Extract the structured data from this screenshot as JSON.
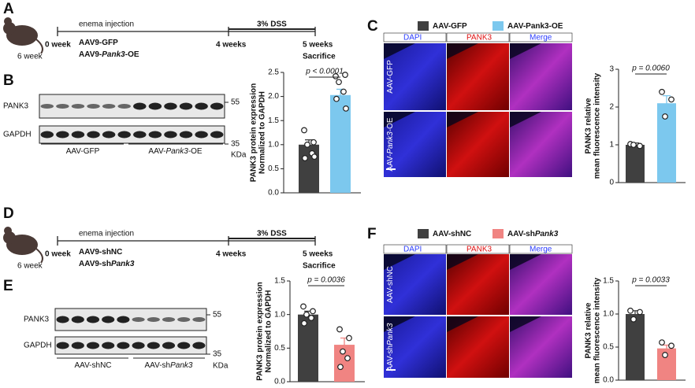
{
  "panel_labels": [
    "A",
    "B",
    "C",
    "D",
    "E",
    "F"
  ],
  "timelines": [
    {
      "age": "6 week",
      "start": "0 week",
      "mid": "4 weeks",
      "end": "5 weeks",
      "end_note": "Sacrifice",
      "injection": "enema injection",
      "treatment": "3% DSS",
      "groups": [
        [
          {
            "text": "AAV9-GFP"
          }
        ],
        [
          {
            "text": "AAV9-"
          },
          {
            "text": "Pank3",
            "italic": true
          },
          {
            "text": "-OE"
          }
        ]
      ]
    },
    {
      "age": "6 week",
      "start": "0 week",
      "mid": "4 weeks",
      "end": "5 weeks",
      "end_note": "Sacrifice",
      "injection": "enema injection",
      "treatment": "3% DSS",
      "groups": [
        [
          {
            "text": "AAV9-shNC"
          }
        ],
        [
          {
            "text": "AAV9-sh"
          },
          {
            "text": "Pank3",
            "italic": true
          }
        ]
      ]
    }
  ],
  "blots": [
    {
      "bands": [
        "PANK3",
        "GAPDH"
      ],
      "markers": [
        "55",
        "35"
      ],
      "unit": "KDa",
      "groups": [
        [
          {
            "text": "AAV-GFP"
          }
        ],
        [
          {
            "text": "AAV-"
          },
          {
            "text": "Pank3",
            "italic": true
          },
          {
            "text": "-OE"
          }
        ]
      ]
    },
    {
      "bands": [
        "PANK3",
        "GAPDH"
      ],
      "markers": [
        "55",
        "35"
      ],
      "unit": "KDa",
      "groups": [
        [
          {
            "text": "AAV-shNC"
          }
        ],
        [
          {
            "text": "AAV-sh"
          },
          {
            "text": "Pank3",
            "italic": true
          }
        ]
      ]
    }
  ],
  "images": [
    {
      "legend": [
        {
          "name": [
            {
              "text": "AAV-GFP"
            }
          ],
          "color": "#404040"
        },
        {
          "name": [
            {
              "text": "AAV-Pank3-OE"
            }
          ],
          "color": "#7cc8ee"
        }
      ],
      "channels": [
        "DAPI",
        "PANK3",
        "Merge"
      ],
      "rows": [
        [
          {
            "text": "AAV-GFP"
          }
        ],
        [
          {
            "text": "AAV-"
          },
          {
            "text": "Pank3",
            "italic": true
          },
          {
            "text": "-OE"
          }
        ]
      ]
    },
    {
      "legend": [
        {
          "name": [
            {
              "text": "AAV-shNC"
            }
          ],
          "color": "#404040"
        },
        {
          "name": [
            {
              "text": "AAV-sh"
            },
            {
              "text": "Pank3",
              "italic": true
            }
          ],
          "color": "#f08482"
        }
      ],
      "channels": [
        "DAPI",
        "PANK3",
        "Merge"
      ],
      "rows": [
        [
          {
            "text": "AAV-shNC"
          }
        ],
        [
          {
            "text": "AAV-sh"
          },
          {
            "text": "Pank3",
            "italic": true
          }
        ]
      ]
    }
  ],
  "chart_data": [
    {
      "type": "bar",
      "ylabel": [
        "PANK3 protein expression",
        "Normalized to GAPDH"
      ],
      "categories": [
        null,
        null
      ],
      "values": [
        1.0,
        2.03
      ],
      "errors": [
        0.1,
        0.12
      ],
      "colors": [
        "#404040",
        "#7cc8ee"
      ],
      "points": [
        [
          1.3,
          1.05,
          1.0,
          0.82,
          0.72,
          0.75
        ],
        [
          2.42,
          2.45,
          2.3,
          2.1,
          1.95,
          1.75
        ]
      ],
      "annotation": "p < 0.0001",
      "ylim": [
        0,
        2.5
      ],
      "yticks": [
        {
          "value": 0,
          "label": "0.0"
        },
        0.5,
        {
          "value": 1,
          "label": "1.0"
        },
        1.5,
        {
          "value": 2,
          "label": "2.0"
        },
        2.5
      ]
    },
    {
      "type": "bar",
      "ylabel": [
        "PANK3 relative",
        "mean fluorescence intensity"
      ],
      "categories": [
        null,
        null
      ],
      "values": [
        1.0,
        2.1
      ],
      "errors": [
        0.05,
        0.2
      ],
      "colors": [
        "#404040",
        "#7cc8ee"
      ],
      "points": [
        [
          1.02,
          0.97,
          1.0
        ],
        [
          2.4,
          2.2,
          1.75
        ]
      ],
      "annotation": "p = 0.0060",
      "ylim": [
        0,
        3
      ],
      "yticks": [
        0,
        1,
        2,
        3
      ]
    },
    {
      "type": "bar",
      "ylabel": [
        "PANK3  protein expression",
        "Normalized to GAPDH"
      ],
      "categories": [
        null,
        null
      ],
      "values": [
        1.0,
        0.55
      ],
      "errors": [
        0.05,
        0.1
      ],
      "colors": [
        "#404040",
        "#f08482"
      ],
      "points": [
        [
          1.12,
          1.05,
          1.0,
          0.95,
          0.87
        ],
        [
          0.78,
          0.65,
          0.45,
          0.35,
          0.22
        ]
      ],
      "annotation": "p = 0.0036",
      "ylim": [
        0,
        1.5
      ],
      "yticks": [
        {
          "value": 0,
          "label": "0.0"
        },
        0.5,
        {
          "value": 1,
          "label": "1.0"
        },
        1.5
      ]
    },
    {
      "type": "bar",
      "ylabel": [
        "PANK3 relative",
        "mean fluorescence intensity"
      ],
      "categories": [
        null,
        null
      ],
      "values": [
        1.0,
        0.48
      ],
      "errors": [
        0.05,
        0.05
      ],
      "colors": [
        "#404040",
        "#f08482"
      ],
      "points": [
        [
          1.05,
          1.03,
          0.92
        ],
        [
          0.57,
          0.52,
          0.38
        ]
      ],
      "annotation": "p = 0.0033",
      "ylim": [
        0,
        1.5
      ],
      "yticks": [
        {
          "value": 0,
          "label": "0.0"
        },
        0.5,
        {
          "value": 1,
          "label": "1.0"
        },
        1.5
      ]
    }
  ]
}
